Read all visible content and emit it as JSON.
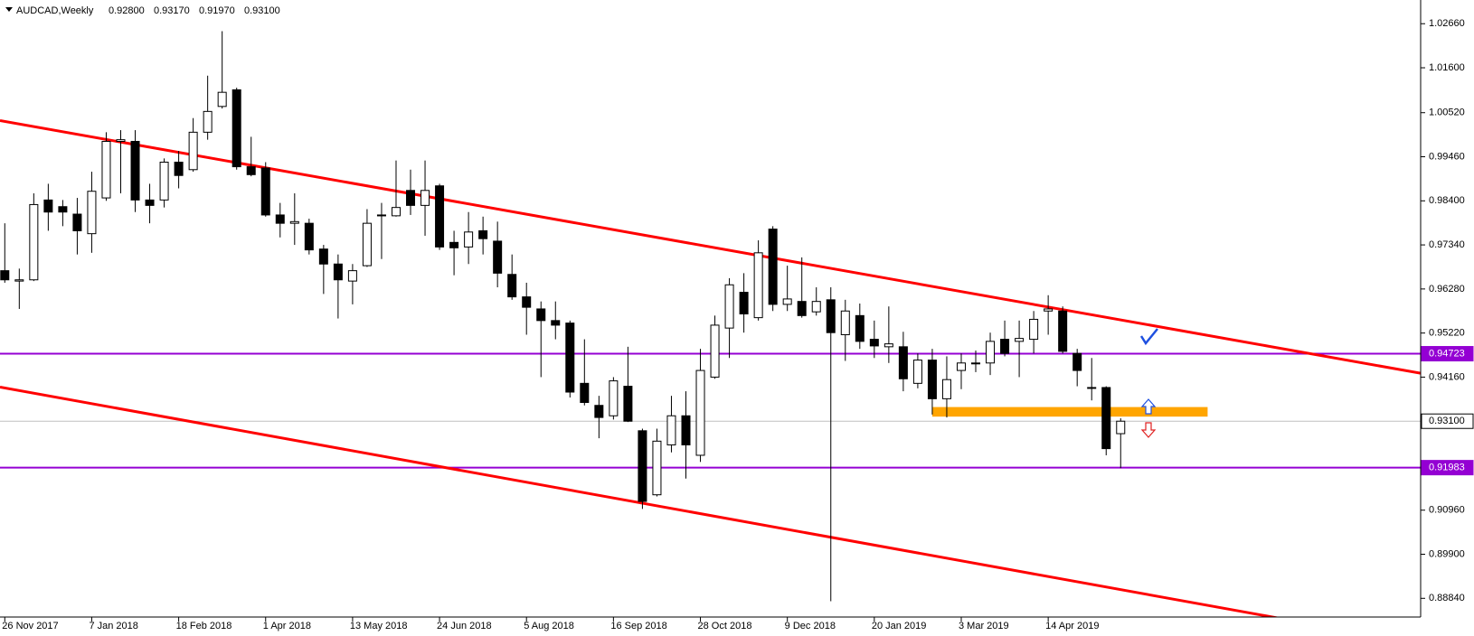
{
  "header": {
    "symbol": "AUDCAD,Weekly",
    "ohlc": [
      "0.92800",
      "0.93170",
      "0.91970",
      "0.93100"
    ]
  },
  "chart_data": {
    "type": "candlestick",
    "categories": [
      "26 Nov 2017",
      null,
      null,
      null,
      null,
      null,
      "7 Jan 2018",
      null,
      null,
      null,
      null,
      null,
      "18 Feb 2018",
      null,
      null,
      null,
      null,
      null,
      "1 Apr 2018",
      null,
      null,
      null,
      null,
      null,
      "13 May 2018",
      null,
      null,
      null,
      null,
      null,
      "24 Jun 2018",
      null,
      null,
      null,
      null,
      null,
      "5 Aug 2018",
      null,
      null,
      null,
      null,
      null,
      "16 Sep 2018",
      null,
      null,
      null,
      null,
      null,
      "28 Oct 2018",
      null,
      null,
      null,
      null,
      null,
      "9 Dec 2018",
      null,
      null,
      null,
      null,
      null,
      "20 Jan 2019",
      null,
      null,
      null,
      null,
      null,
      "3 Mar 2019",
      null,
      null,
      null,
      null,
      null,
      "14 Apr 2019",
      null,
      null,
      null,
      null,
      null
    ],
    "open": [
      0.9672,
      0.9647,
      0.965,
      0.9842,
      0.9826,
      0.9808,
      0.9761,
      0.9847,
      0.9983,
      0.9983,
      0.9842,
      0.9842,
      0.9933,
      0.9915,
      1.0005,
      1.0067,
      1.0107,
      0.9922,
      0.9919,
      0.9806,
      0.9786,
      0.9786,
      0.9724,
      0.9688,
      0.9647,
      0.9684,
      0.9804,
      0.9804,
      0.9865,
      0.9829,
      0.9876,
      0.974,
      0.9729,
      0.9768,
      0.9743,
      0.9663,
      0.9609,
      0.958,
      0.9552,
      0.9546,
      0.9401,
      0.9348,
      0.9323,
      0.9394,
      0.9287,
      0.9133,
      0.9253,
      0.9323,
      0.9228,
      0.9416,
      0.9534,
      0.962,
      0.9559,
      0.9772,
      0.9591,
      0.9598,
      0.9573,
      0.9602,
      0.9518,
      0.9564,
      0.9507,
      0.9489,
      0.9489,
      0.9401,
      0.9457,
      0.9364,
      0.9432,
      0.945,
      0.945,
      0.9507,
      0.9502,
      0.9507,
      0.9575,
      0.9575,
      0.9473,
      0.9391,
      0.9391,
      0.928
    ],
    "high": [
      0.9786,
      0.9677,
      0.9858,
      0.9881,
      0.9842,
      0.9847,
      0.991,
      1.0005,
      1.001,
      1.001,
      0.9881,
      0.9942,
      0.996,
      1.0039,
      1.0141,
      1.0248,
      1.0112,
      0.9994,
      0.9933,
      0.9835,
      0.9858,
      0.9797,
      0.9734,
      0.9711,
      0.9688,
      0.982,
      0.9835,
      0.9937,
      0.9915,
      0.9937,
      0.9881,
      0.9768,
      0.9813,
      0.9802,
      0.979,
      0.9711,
      0.9643,
      0.9598,
      0.9598,
      0.9552,
      0.9507,
      0.9371,
      0.9416,
      0.9489,
      0.9292,
      0.9292,
      0.9371,
      0.9382,
      0.9484,
      0.9564,
      0.9654,
      0.9666,
      0.9745,
      0.9779,
      0.9684,
      0.9704,
      0.9632,
      0.9632,
      0.9602,
      0.9593,
      0.9552,
      0.9586,
      0.9525,
      0.9473,
      0.9484,
      0.9466,
      0.9473,
      0.948,
      0.9523,
      0.9552,
      0.9552,
      0.9575,
      0.9613,
      0.9586,
      0.9484,
      0.9462,
      0.9394,
      0.9317
    ],
    "low": [
      0.9643,
      0.958,
      0.9647,
      0.9768,
      0.9779,
      0.9711,
      0.9715,
      0.984,
      0.9858,
      0.9813,
      0.9786,
      0.9824,
      0.987,
      0.991,
      0.9987,
      1.0062,
      0.9915,
      0.9899,
      0.9802,
      0.9752,
      0.9734,
      0.9711,
      0.9616,
      0.9557,
      0.9591,
      0.9681,
      0.97,
      0.9802,
      0.9806,
      0.9756,
      0.9722,
      0.9661,
      0.9688,
      0.9711,
      0.9632,
      0.9602,
      0.9518,
      0.9416,
      0.9507,
      0.9367,
      0.9348,
      0.9269,
      0.9314,
      0.9308,
      0.9099,
      0.9129,
      0.9235,
      0.9172,
      0.9212,
      0.9412,
      0.9462,
      0.9523,
      0.9552,
      0.9575,
      0.9575,
      0.9559,
      0.9564,
      0.8877,
      0.9455,
      0.9484,
      0.9462,
      0.945,
      0.9382,
      0.9389,
      0.9326,
      0.9319,
      0.9387,
      0.9428,
      0.9421,
      0.9466,
      0.9416,
      0.9473,
      0.9518,
      0.9473,
      0.9394,
      0.936,
      0.9228,
      0.9197
    ],
    "close": [
      0.965,
      0.965,
      0.9831,
      0.9813,
      0.9813,
      0.9768,
      0.9863,
      0.9983,
      0.9987,
      0.9842,
      0.9829,
      0.9933,
      0.9901,
      1.0005,
      1.0055,
      1.0101,
      0.9922,
      0.9903,
      0.9806,
      0.9786,
      0.979,
      0.9722,
      0.9688,
      0.965,
      0.9672,
      0.9786,
      0.9806,
      0.9824,
      0.9829,
      0.9865,
      0.9729,
      0.9727,
      0.9765,
      0.9749,
      0.9666,
      0.9609,
      0.9584,
      0.9552,
      0.9541,
      0.938,
      0.9355,
      0.9319,
      0.9407,
      0.931,
      0.9117,
      0.9262,
      0.9323,
      0.9253,
      0.9432,
      0.9541,
      0.9638,
      0.9568,
      0.9715,
      0.9591,
      0.9604,
      0.9564,
      0.9598,
      0.9523,
      0.9575,
      0.9502,
      0.9491,
      0.9496,
      0.9412,
      0.9457,
      0.9364,
      0.941,
      0.945,
      0.9448,
      0.9502,
      0.9473,
      0.9509,
      0.9555,
      0.958,
      0.9478,
      0.9432,
      0.9391,
      0.9244,
      0.931
    ],
    "up_color": "#ffffff",
    "down_color": "#000000",
    "wick_color": "#000000",
    "xlim": [
      -0.33,
      97.7
    ],
    "ylim": [
      0.8839,
      1.0323
    ],
    "yticks": [
      {
        "value": 1.0266,
        "label": "1.02660"
      },
      {
        "value": 1.016,
        "label": "1.01600"
      },
      {
        "value": 1.0052,
        "label": "1.00520"
      },
      {
        "value": 0.9946,
        "label": "0.99460"
      },
      {
        "value": 0.984,
        "label": "0.98400"
      },
      {
        "value": 0.9734,
        "label": "0.97340"
      },
      {
        "value": 0.9628,
        "label": "0.96280"
      },
      {
        "value": 0.9522,
        "label": "0.95220"
      },
      {
        "value": 0.9416,
        "label": "0.94160"
      },
      {
        "value": 0.9096,
        "label": "0.90960"
      },
      {
        "value": 0.899,
        "label": "0.89900"
      },
      {
        "value": 0.8884,
        "label": "0.88840"
      }
    ],
    "hlines": [
      {
        "value": 0.94723,
        "label": "0.94723",
        "color": "#9400d3",
        "label_fill": "#9400d3",
        "label_color": "#ffffff"
      },
      {
        "value": 0.931,
        "label": "0.93100",
        "color": "#c0c0c0",
        "label_fill": "#ffffff",
        "label_color": "#000000"
      },
      {
        "value": 0.91983,
        "label": "0.91983",
        "color": "#9400d3",
        "label_fill": "#9400d3",
        "label_color": "#ffffff"
      }
    ],
    "trendlines": [
      {
        "color": "#ff0000",
        "points": [
          [
            0,
            1.0031
          ],
          [
            100,
            0.9411
          ]
        ]
      },
      {
        "color": "#ff0000",
        "points": [
          [
            0,
            0.939
          ],
          [
            100,
            0.876
          ]
        ]
      }
    ],
    "zones": [
      {
        "x": [
          64,
          83
        ],
        "y": [
          0.9321,
          0.9344
        ],
        "color": "#ffa500"
      }
    ]
  }
}
